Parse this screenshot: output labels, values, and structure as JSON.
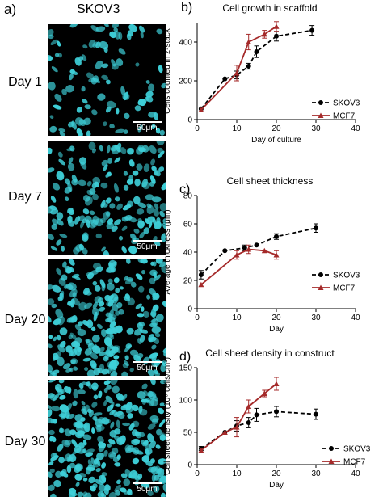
{
  "panel_a": {
    "letter": "a)",
    "title": "SKOV3",
    "images": [
      {
        "day": "Day 1",
        "scale": "50μm",
        "density": 0.25
      },
      {
        "day": "Day 7",
        "scale": "50μm",
        "density": 0.55
      },
      {
        "day": "Day 20",
        "scale": "50μm",
        "density": 0.85
      },
      {
        "day": "Day 30",
        "scale": "50μm",
        "density": 1.0
      }
    ],
    "colors": {
      "nuclei": "#3ecfd8",
      "background": "#000000"
    }
  },
  "colors": {
    "skov3": "#000000",
    "mcf7": "#a52a2a"
  },
  "chart_data": [
    {
      "type": "line",
      "letter": "b)",
      "title": "Cell growth in scaffold",
      "xlabel": "Day of culture",
      "ylabel": "Cells counted  in z-stack",
      "xlim": [
        0,
        40
      ],
      "ylim": [
        0,
        500
      ],
      "xticks": [
        "0",
        "10",
        "20",
        "30",
        "40"
      ],
      "yticks": [
        "0",
        "200",
        "400"
      ],
      "series": [
        {
          "name": "SKOV3",
          "style": "dashed",
          "x": [
            1,
            7,
            10,
            13,
            15,
            20,
            29
          ],
          "y": [
            55,
            210,
            230,
            275,
            350,
            430,
            460
          ],
          "err": [
            0,
            0,
            20,
            15,
            30,
            25,
            25
          ]
        },
        {
          "name": "MCF7",
          "style": "solid",
          "x": [
            1,
            10,
            13,
            17,
            20
          ],
          "y": [
            50,
            240,
            400,
            440,
            480
          ],
          "err": [
            0,
            40,
            40,
            20,
            25
          ]
        }
      ],
      "legend": "lower-right"
    },
    {
      "type": "line",
      "letter": "c)",
      "title": "Cell sheet thickness",
      "xlabel": "Day",
      "ylabel": "Average thickness (μm)",
      "xlim": [
        0,
        40
      ],
      "ylim": [
        0,
        80
      ],
      "xticks": [
        "0",
        "10",
        "20",
        "30",
        "40"
      ],
      "yticks": [
        "0",
        "20",
        "40",
        "60",
        "80"
      ],
      "series": [
        {
          "name": "SKOV3",
          "style": "dashed",
          "x": [
            1,
            7,
            12,
            15,
            20,
            30
          ],
          "y": [
            24,
            41,
            43,
            45,
            51,
            57
          ],
          "err": [
            3,
            0,
            2,
            0,
            2,
            3
          ]
        },
        {
          "name": "MCF7",
          "style": "solid",
          "x": [
            1,
            10,
            13,
            17,
            20
          ],
          "y": [
            17,
            38,
            42,
            41,
            38
          ],
          "err": [
            0,
            3,
            3,
            0,
            3
          ]
        }
      ],
      "legend": "lower-right"
    },
    {
      "type": "line",
      "letter": "d)",
      "title": "Cell sheet density in construct",
      "xlabel": "Day",
      "ylabel": "Cell sheet density (10⁶ cells/cm³)",
      "xlim": [
        0,
        40
      ],
      "ylim": [
        0,
        150
      ],
      "xticks": [
        "0",
        "10",
        "20",
        "30",
        "40"
      ],
      "yticks": [
        "0",
        "50",
        "100",
        "150"
      ],
      "series": [
        {
          "name": "SKOV3",
          "style": "dashed",
          "x": [
            1,
            7,
            10,
            13,
            15,
            20,
            30
          ],
          "y": [
            25,
            50,
            60,
            65,
            77,
            82,
            78
          ],
          "err": [
            3,
            0,
            8,
            8,
            10,
            8,
            8
          ]
        },
        {
          "name": "MCF7",
          "style": "solid",
          "x": [
            1,
            7,
            10,
            13,
            17,
            20
          ],
          "y": [
            22,
            50,
            58,
            90,
            110,
            125
          ],
          "err": [
            0,
            0,
            15,
            10,
            5,
            10
          ]
        }
      ],
      "legend": "lower-right"
    }
  ]
}
